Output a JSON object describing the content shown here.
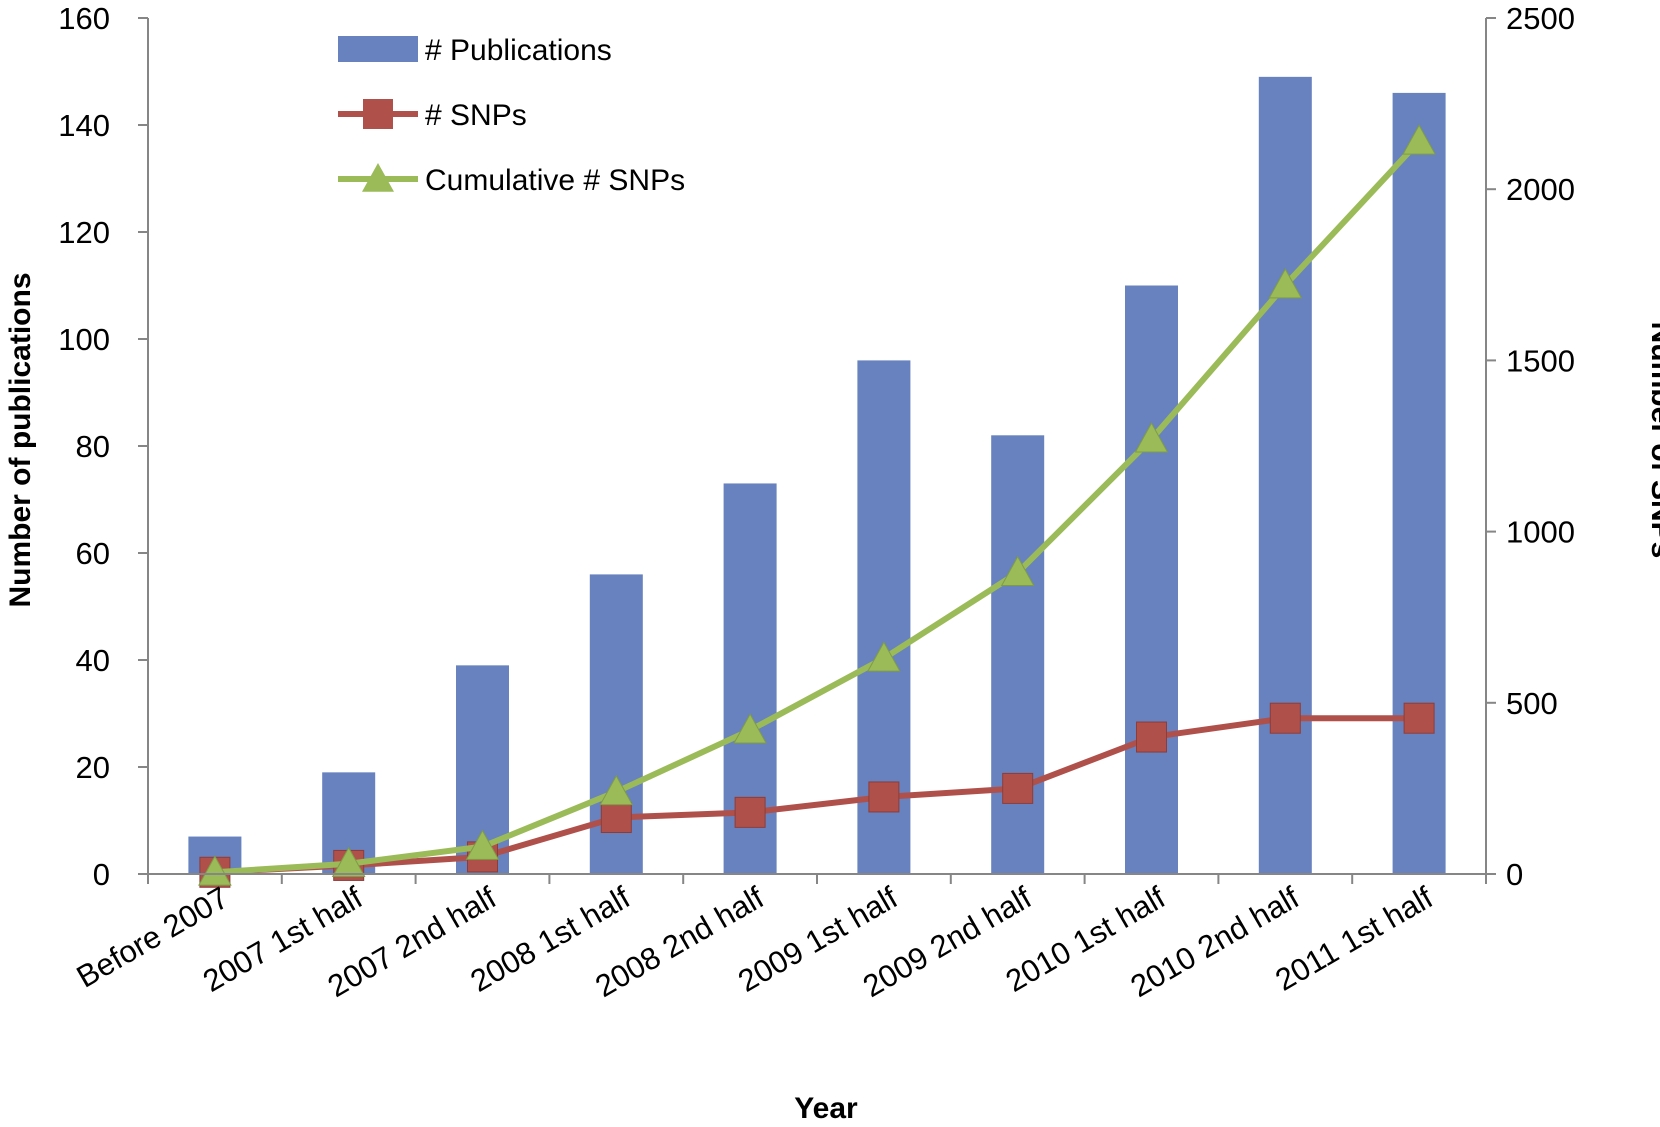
{
  "chart_data": {
    "type": "bar",
    "title": "",
    "xlabel": "Year",
    "ylabel": "Number of publications",
    "y2label": "Number of SNPs",
    "ylim": [
      0,
      160
    ],
    "y2lim": [
      0,
      2500
    ],
    "yticks": [
      "0",
      "20",
      "40",
      "60",
      "80",
      "100",
      "120",
      "140",
      "160"
    ],
    "y2ticks": [
      "0",
      "500",
      "1000",
      "1500",
      "2000",
      "2500"
    ],
    "grid": false,
    "legend_position": "top-left",
    "categories": [
      "Before 2007",
      "2007 1st half",
      "2007 2nd half",
      "2008 1st half",
      "2008 2nd half",
      "2009 1st half",
      "2009 2nd half",
      "2010 1st half",
      "2010 2nd half",
      "2011 1st half"
    ],
    "series": [
      {
        "name": "# Publications",
        "type": "bar",
        "axis": "left",
        "color": "#6782be",
        "values": [
          7,
          19,
          39,
          56,
          73,
          96,
          82,
          110,
          149,
          146
        ]
      },
      {
        "name": "# SNPs",
        "type": "line",
        "marker": "square",
        "axis": "right",
        "color": "#b0504b",
        "values": [
          5,
          25,
          50,
          165,
          180,
          225,
          250,
          400,
          455,
          455
        ]
      },
      {
        "name": "Cumulative # SNPs",
        "type": "line",
        "marker": "triangle",
        "axis": "right",
        "color": "#9bbb59",
        "values": [
          5,
          30,
          80,
          240,
          420,
          630,
          880,
          1270,
          1720,
          2140
        ]
      }
    ]
  }
}
